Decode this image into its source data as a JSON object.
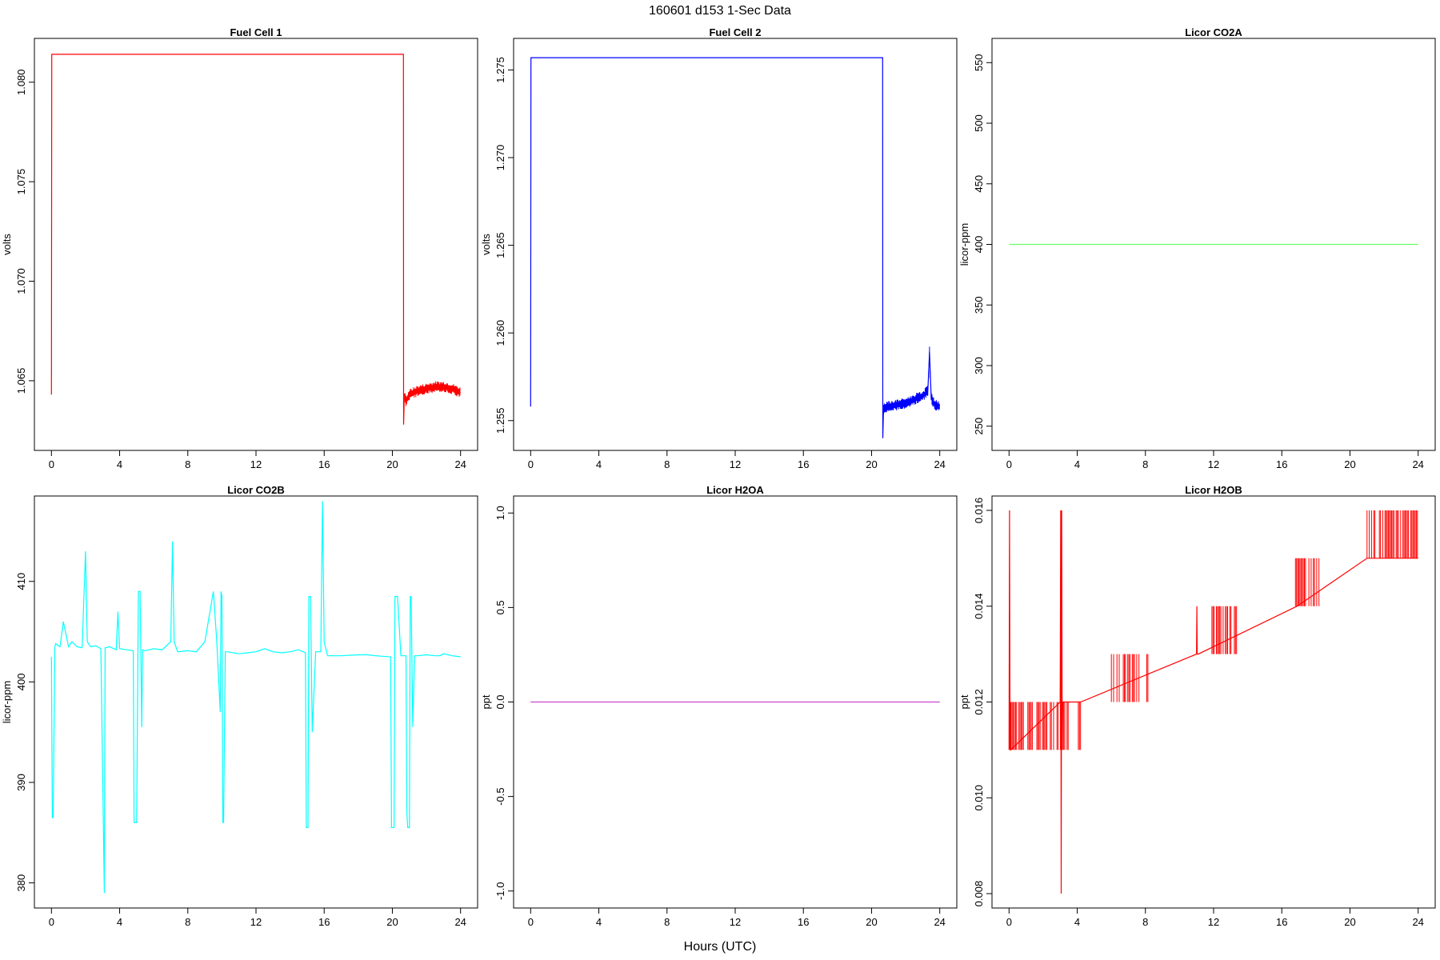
{
  "figure": {
    "title": "160601   d153   1-Sec Data",
    "xlabel": "Hours (UTC)"
  },
  "chart_data": [
    {
      "type": "line",
      "title": "Fuel Cell 1",
      "ylabel": "volts",
      "color": "#ff0000",
      "xlim": [
        -1,
        25
      ],
      "ylim": [
        1.0615,
        1.0822
      ],
      "xticks": [
        0,
        4,
        8,
        12,
        16,
        20,
        24
      ],
      "yticks": [
        1.065,
        1.07,
        1.075,
        1.08
      ],
      "ytick_labels": [
        "1.065",
        "1.070",
        "1.075",
        "1.080"
      ],
      "series": [
        {
          "x": [
            0,
            0.02,
            20.65,
            20.66,
            20.7,
            20.8,
            21.0,
            21.5,
            22.0,
            22.5,
            23.0,
            23.5,
            24.0
          ],
          "y": [
            1.0643,
            1.0814,
            1.0814,
            1.0628,
            1.0642,
            1.064,
            1.0643,
            1.0645,
            1.0646,
            1.0647,
            1.0647,
            1.0646,
            1.0644
          ]
        }
      ]
    },
    {
      "type": "line",
      "title": "Fuel Cell 2",
      "ylabel": "volts",
      "color": "#0000ff",
      "xlim": [
        -1,
        25
      ],
      "ylim": [
        1.2533,
        1.2768
      ],
      "xticks": [
        0,
        4,
        8,
        12,
        16,
        20,
        24
      ],
      "yticks": [
        1.255,
        1.26,
        1.265,
        1.27,
        1.275
      ],
      "ytick_labels": [
        "1.255",
        "1.260",
        "1.265",
        "1.270",
        "1.275"
      ],
      "series": [
        {
          "x": [
            0,
            0.02,
            20.65,
            20.66,
            20.7,
            21.0,
            21.5,
            22.0,
            22.5,
            23.0,
            23.3,
            23.4,
            23.5,
            23.7,
            24.0
          ],
          "y": [
            1.2558,
            1.2757,
            1.2757,
            1.254,
            1.2557,
            1.2558,
            1.2559,
            1.256,
            1.2562,
            1.2564,
            1.2567,
            1.2589,
            1.2563,
            1.2559,
            1.2558
          ]
        }
      ]
    },
    {
      "type": "line",
      "title": "Licor CO2A",
      "ylabel": "licor-ppm",
      "color": "#66ff66",
      "xlim": [
        -1,
        25
      ],
      "ylim": [
        230,
        570
      ],
      "xticks": [
        0,
        4,
        8,
        12,
        16,
        20,
        24
      ],
      "yticks": [
        250,
        300,
        350,
        400,
        450,
        500,
        550
      ],
      "ytick_labels": [
        "250",
        "300",
        "350",
        "400",
        "450",
        "500",
        "550"
      ],
      "series": [
        {
          "x": [
            0,
            24
          ],
          "y": [
            400,
            400
          ]
        }
      ]
    },
    {
      "type": "line",
      "title": "Licor CO2B",
      "ylabel": "licor-ppm",
      "color": "#00ffff",
      "xlim": [
        -1,
        25
      ],
      "ylim": [
        377.5,
        418.5
      ],
      "xticks": [
        0,
        4,
        8,
        12,
        16,
        20,
        24
      ],
      "yticks": [
        380,
        390,
        400,
        410
      ],
      "ytick_labels": [
        "380",
        "390",
        "400",
        "410"
      ],
      "series": [
        {
          "x": [
            0,
            0.05,
            0.1,
            0.2,
            0.25,
            0.5,
            0.7,
            1.0,
            1.2,
            1.5,
            1.8,
            2.0,
            2.1,
            2.3,
            2.6,
            2.9,
            3.1,
            3.15,
            3.2,
            3.4,
            3.8,
            3.9,
            4.0,
            4.4,
            4.8,
            4.85,
            5.0,
            5.1,
            5.2,
            5.3,
            5.35,
            5.5,
            6.0,
            6.5,
            7.0,
            7.1,
            7.2,
            7.4,
            8.0,
            8.5,
            9.0,
            9.5,
            9.7,
            9.9,
            9.95,
            10.0,
            10.05,
            10.1,
            10.2,
            10.3,
            11.0,
            11.5,
            12.0,
            12.5,
            13.0,
            13.5,
            14.0,
            14.5,
            14.9,
            14.95,
            15.05,
            15.1,
            15.2,
            15.3,
            15.5,
            15.8,
            15.9,
            16.0,
            16.2,
            16.5,
            17.0,
            18.0,
            18.5,
            19.0,
            19.9,
            19.95,
            20.1,
            20.15,
            20.3,
            20.5,
            20.8,
            20.85,
            20.9,
            21.0,
            21.05,
            21.1,
            21.2,
            21.3,
            21.5,
            22.0,
            22.5,
            22.8,
            23.0,
            23.5,
            24.0
          ],
          "y": [
            402.5,
            386.5,
            386.5,
            403.5,
            403.8,
            403.5,
            406.0,
            403.5,
            404.0,
            403.5,
            403.4,
            413.0,
            404.0,
            403.5,
            403.6,
            403.3,
            379.0,
            403.4,
            403.4,
            403.5,
            403.2,
            407.0,
            403.3,
            403.2,
            403.1,
            386.0,
            386.0,
            409.0,
            409.0,
            395.5,
            403.2,
            403.1,
            403.3,
            403.2,
            404.0,
            414.0,
            404.0,
            403.0,
            403.1,
            403.0,
            404.0,
            409.0,
            404.0,
            397.0,
            409.0,
            408.5,
            386.0,
            386.0,
            403.0,
            403.0,
            402.8,
            402.9,
            403.0,
            403.3,
            403.0,
            402.9,
            403.0,
            403.2,
            402.9,
            385.5,
            385.5,
            408.5,
            408.5,
            395.0,
            403.0,
            403.0,
            418.0,
            404.0,
            402.6,
            402.6,
            402.6,
            402.7,
            402.7,
            402.6,
            402.5,
            385.5,
            385.5,
            408.5,
            408.5,
            402.6,
            402.6,
            387.0,
            385.5,
            385.5,
            408.5,
            408.5,
            395.5,
            402.6,
            402.6,
            402.7,
            402.6,
            402.6,
            402.8,
            402.6,
            402.5
          ]
        }
      ]
    },
    {
      "type": "line",
      "title": "Licor H2OA",
      "ylabel": "ppt",
      "color": "#cc44cc",
      "xlim": [
        -1,
        25
      ],
      "ylim": [
        -1.09,
        1.09
      ],
      "xticks": [
        0,
        4,
        8,
        12,
        16,
        20,
        24
      ],
      "yticks": [
        -1.0,
        -0.5,
        0.0,
        0.5,
        1.0
      ],
      "ytick_labels": [
        "-1.0",
        "-0.5",
        "0.0",
        "0.5",
        "1.0"
      ],
      "series": [
        {
          "x": [
            0,
            24
          ],
          "y": [
            0.0,
            0.0
          ]
        }
      ]
    },
    {
      "type": "line",
      "title": "Licor H2OB",
      "ylabel": "ppt",
      "color": "#ff0000",
      "xlim": [
        -1,
        25
      ],
      "ylim": [
        0.0077,
        0.0163
      ],
      "xticks": [
        0,
        4,
        8,
        12,
        16,
        20,
        24
      ],
      "yticks": [
        0.008,
        0.01,
        0.012,
        0.014,
        0.016
      ],
      "ytick_labels": [
        "0.008",
        "0.010",
        "0.012",
        "0.014",
        "0.016"
      ],
      "series": [
        {
          "x": [
            0,
            0.03,
            0.06,
            0.08,
            0.1,
            3.0,
            3.03,
            3.06,
            3.09,
            3.12,
            3.15,
            4.2,
            11.0,
            11.02,
            11.04,
            11.1,
            16.9,
            21.0,
            24.0
          ],
          "y": [
            0.011,
            0.016,
            0.011,
            0.012,
            0.011,
            0.012,
            0.016,
            0.008,
            0.016,
            0.011,
            0.012,
            0.012,
            0.013,
            0.014,
            0.013,
            0.013,
            0.014,
            0.015,
            0.015
          ]
        }
      ],
      "noise_bands": [
        {
          "x_start": 0.05,
          "x_end": 3.5,
          "low": 0.011,
          "high": 0.012
        },
        {
          "x_start": 4.0,
          "x_end": 4.2,
          "low": 0.011,
          "high": 0.012
        },
        {
          "x_start": 6.0,
          "x_end": 6.5,
          "low": 0.012,
          "high": 0.013
        },
        {
          "x_start": 6.7,
          "x_end": 8.2,
          "low": 0.012,
          "high": 0.013
        },
        {
          "x_start": 11.9,
          "x_end": 13.4,
          "low": 0.013,
          "high": 0.014
        },
        {
          "x_start": 16.8,
          "x_end": 18.2,
          "low": 0.014,
          "high": 0.015
        },
        {
          "x_start": 21.0,
          "x_end": 24.0,
          "low": 0.015,
          "high": 0.016
        }
      ]
    }
  ]
}
